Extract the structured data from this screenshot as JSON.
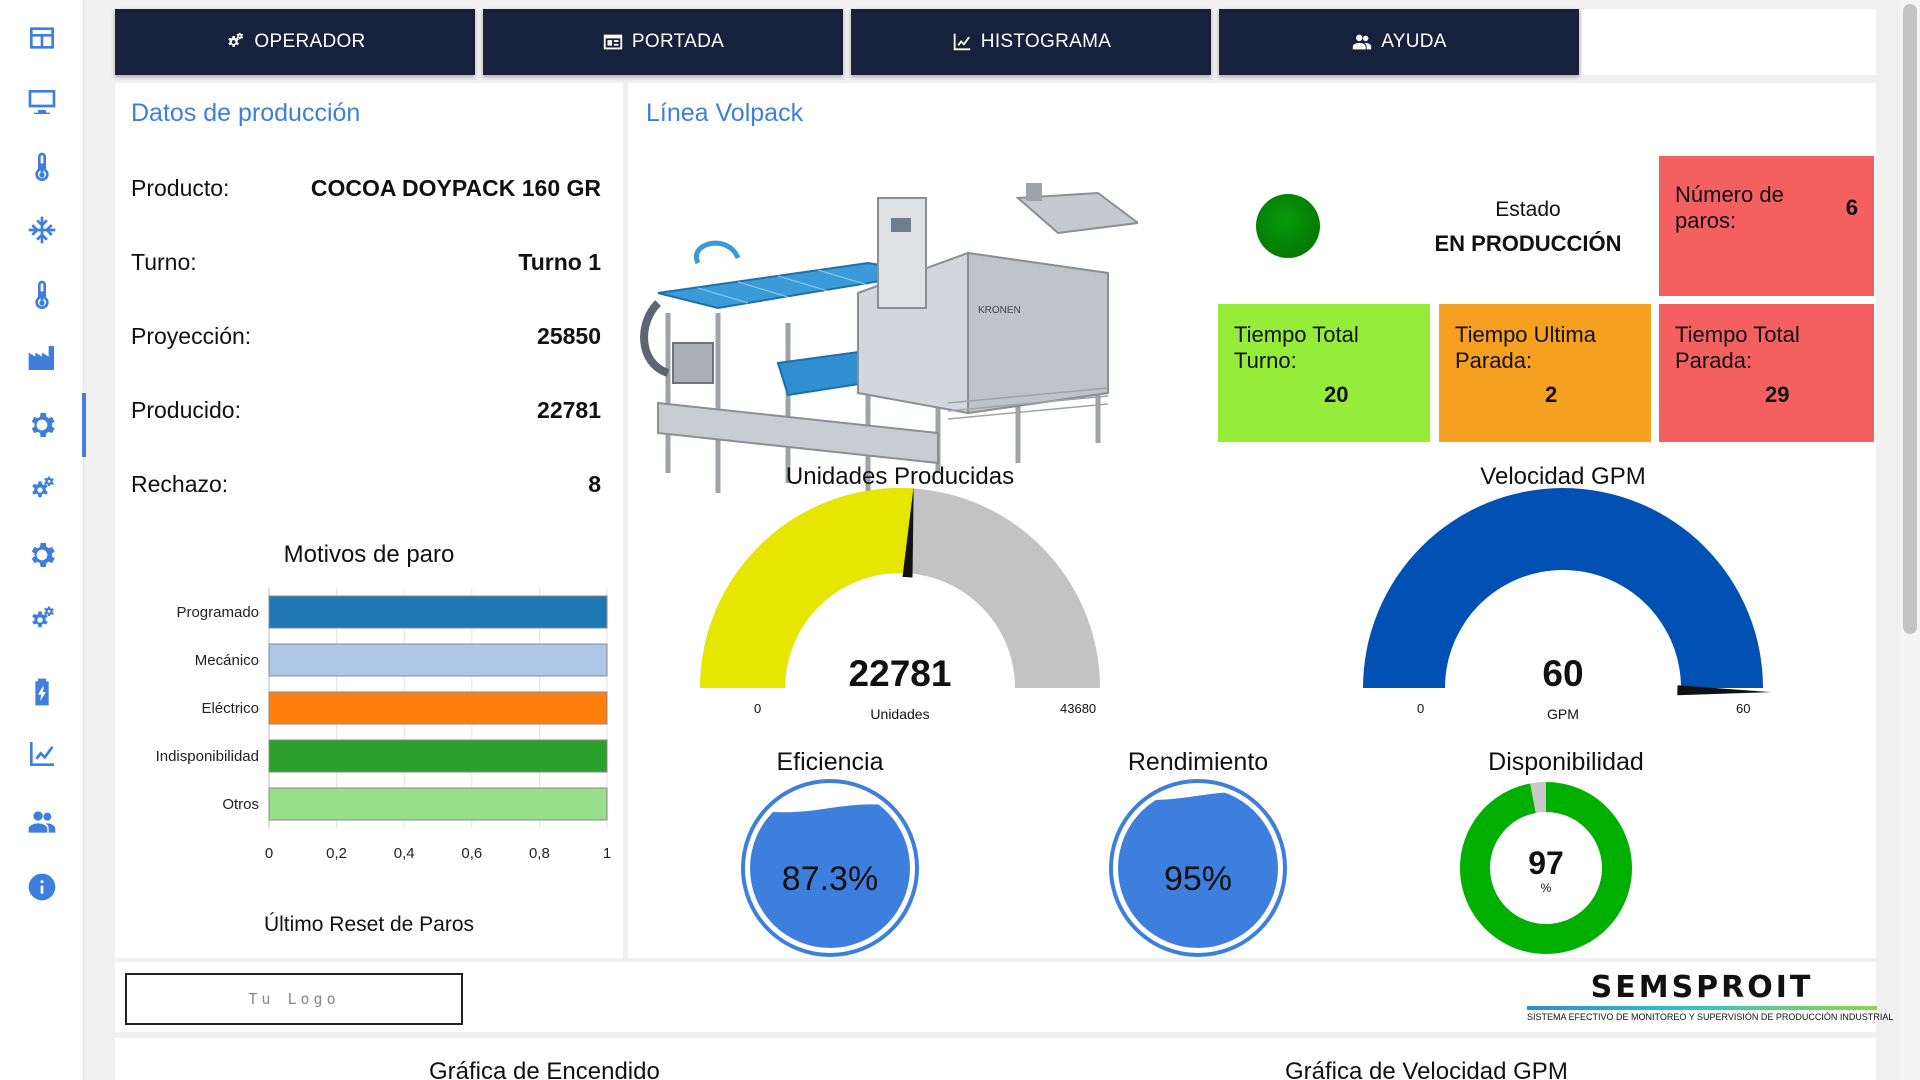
{
  "sidebar": {
    "items": [
      {
        "icon": "dashboard-icon"
      },
      {
        "icon": "monitor-icon"
      },
      {
        "icon": "thermometer-icon"
      },
      {
        "icon": "snowflake-icon"
      },
      {
        "icon": "thermometer-icon"
      },
      {
        "icon": "factory-icon"
      },
      {
        "icon": "gear-icon"
      },
      {
        "icon": "gears-icon"
      },
      {
        "icon": "gear-icon"
      },
      {
        "icon": "gears-icon"
      },
      {
        "icon": "battery-charging-icon"
      },
      {
        "icon": "trend-chart-icon"
      },
      {
        "icon": "group-icon"
      },
      {
        "icon": "info-icon"
      }
    ],
    "active_index": 6
  },
  "nav": {
    "operador": "OPERADOR",
    "portada": "PORTADA",
    "histograma": "HISTOGRAMA",
    "ayuda": "AYUDA"
  },
  "production": {
    "title": "Datos de producción",
    "rows": [
      {
        "label": "Producto:",
        "value": "COCOA DOYPACK 160 GR"
      },
      {
        "label": "Turno:",
        "value": "Turno 1"
      },
      {
        "label": "Proyección:",
        "value": "25850"
      },
      {
        "label": "Producido:",
        "value": "22781"
      },
      {
        "label": "Rechazo:",
        "value": "8"
      }
    ],
    "reset_label": "Último Reset de Paros"
  },
  "line": {
    "title": "Línea Volpack",
    "machine_brand": "KRONEN"
  },
  "status": {
    "label": "Estado",
    "value": "EN PRODUCCIÓN",
    "color": "#008000"
  },
  "kpis": {
    "paros": {
      "label": "Número de paros:",
      "value": "6",
      "color": "#f46060"
    },
    "tiempo_turno": {
      "label": "Tiempo Total Turno:",
      "value": "20",
      "color": "#95ed3a"
    },
    "tiempo_ultima": {
      "label": "Tiempo Ultima Parada:",
      "value": "2",
      "color": "#f5a020"
    },
    "tiempo_parada": {
      "label": "Tiempo Total Parada:",
      "value": "29",
      "color": "#f46060"
    }
  },
  "gauges": {
    "unidades": {
      "title": "Unidades Producidas",
      "value": "22781",
      "unit": "Unidades",
      "min": "0",
      "max": "43680",
      "fill_color": "#e6e600",
      "bg_color": "#c3c3c3"
    },
    "velocidad": {
      "title": "Velocidad GPM",
      "value": "60",
      "unit": "GPM",
      "min": "0",
      "max": "60",
      "fill_color": "#0051b3"
    }
  },
  "liquids": {
    "eficiencia": {
      "title": "Eficiencia",
      "value": "87.3%",
      "fraction": 0.873,
      "color": "#3e7fde"
    },
    "rendimiento": {
      "title": "Rendimiento",
      "value": "95%",
      "fraction": 0.95,
      "color": "#3e7fde"
    }
  },
  "disponibilidad": {
    "title": "Disponibilidad",
    "value": "97",
    "unit": "%",
    "color": "#00b000",
    "rest_color": "#c8c8c8"
  },
  "chart_data": {
    "type": "bar",
    "orientation": "horizontal",
    "title": "Motivos de paro",
    "categories": [
      "Programado",
      "Mecánico",
      "Eléctrico",
      "Indisponibilidad",
      "Otros"
    ],
    "values": [
      1,
      1,
      1,
      1,
      1
    ],
    "colors": [
      "#1f77b4",
      "#aec7e8",
      "#ff7f0e",
      "#2ca02c",
      "#98df8a"
    ],
    "xlim": [
      0,
      1
    ],
    "xticks": [
      "0",
      "0,2",
      "0,4",
      "0,6",
      "0,8",
      "1"
    ],
    "grid": true
  },
  "footer": {
    "logo_text": "Tu Logo",
    "brand_name": "SEMSPROIT",
    "brand_tagline": "SISTEMA EFECTIVO DE MONITOREO Y SUPERVISIÓN DE PRODUCCIÓN INDUSTRIAL"
  },
  "bottom": {
    "chart1_title": "Gráfica de Encendido",
    "chart2_title": "Gráfica de Velocidad GPM"
  }
}
